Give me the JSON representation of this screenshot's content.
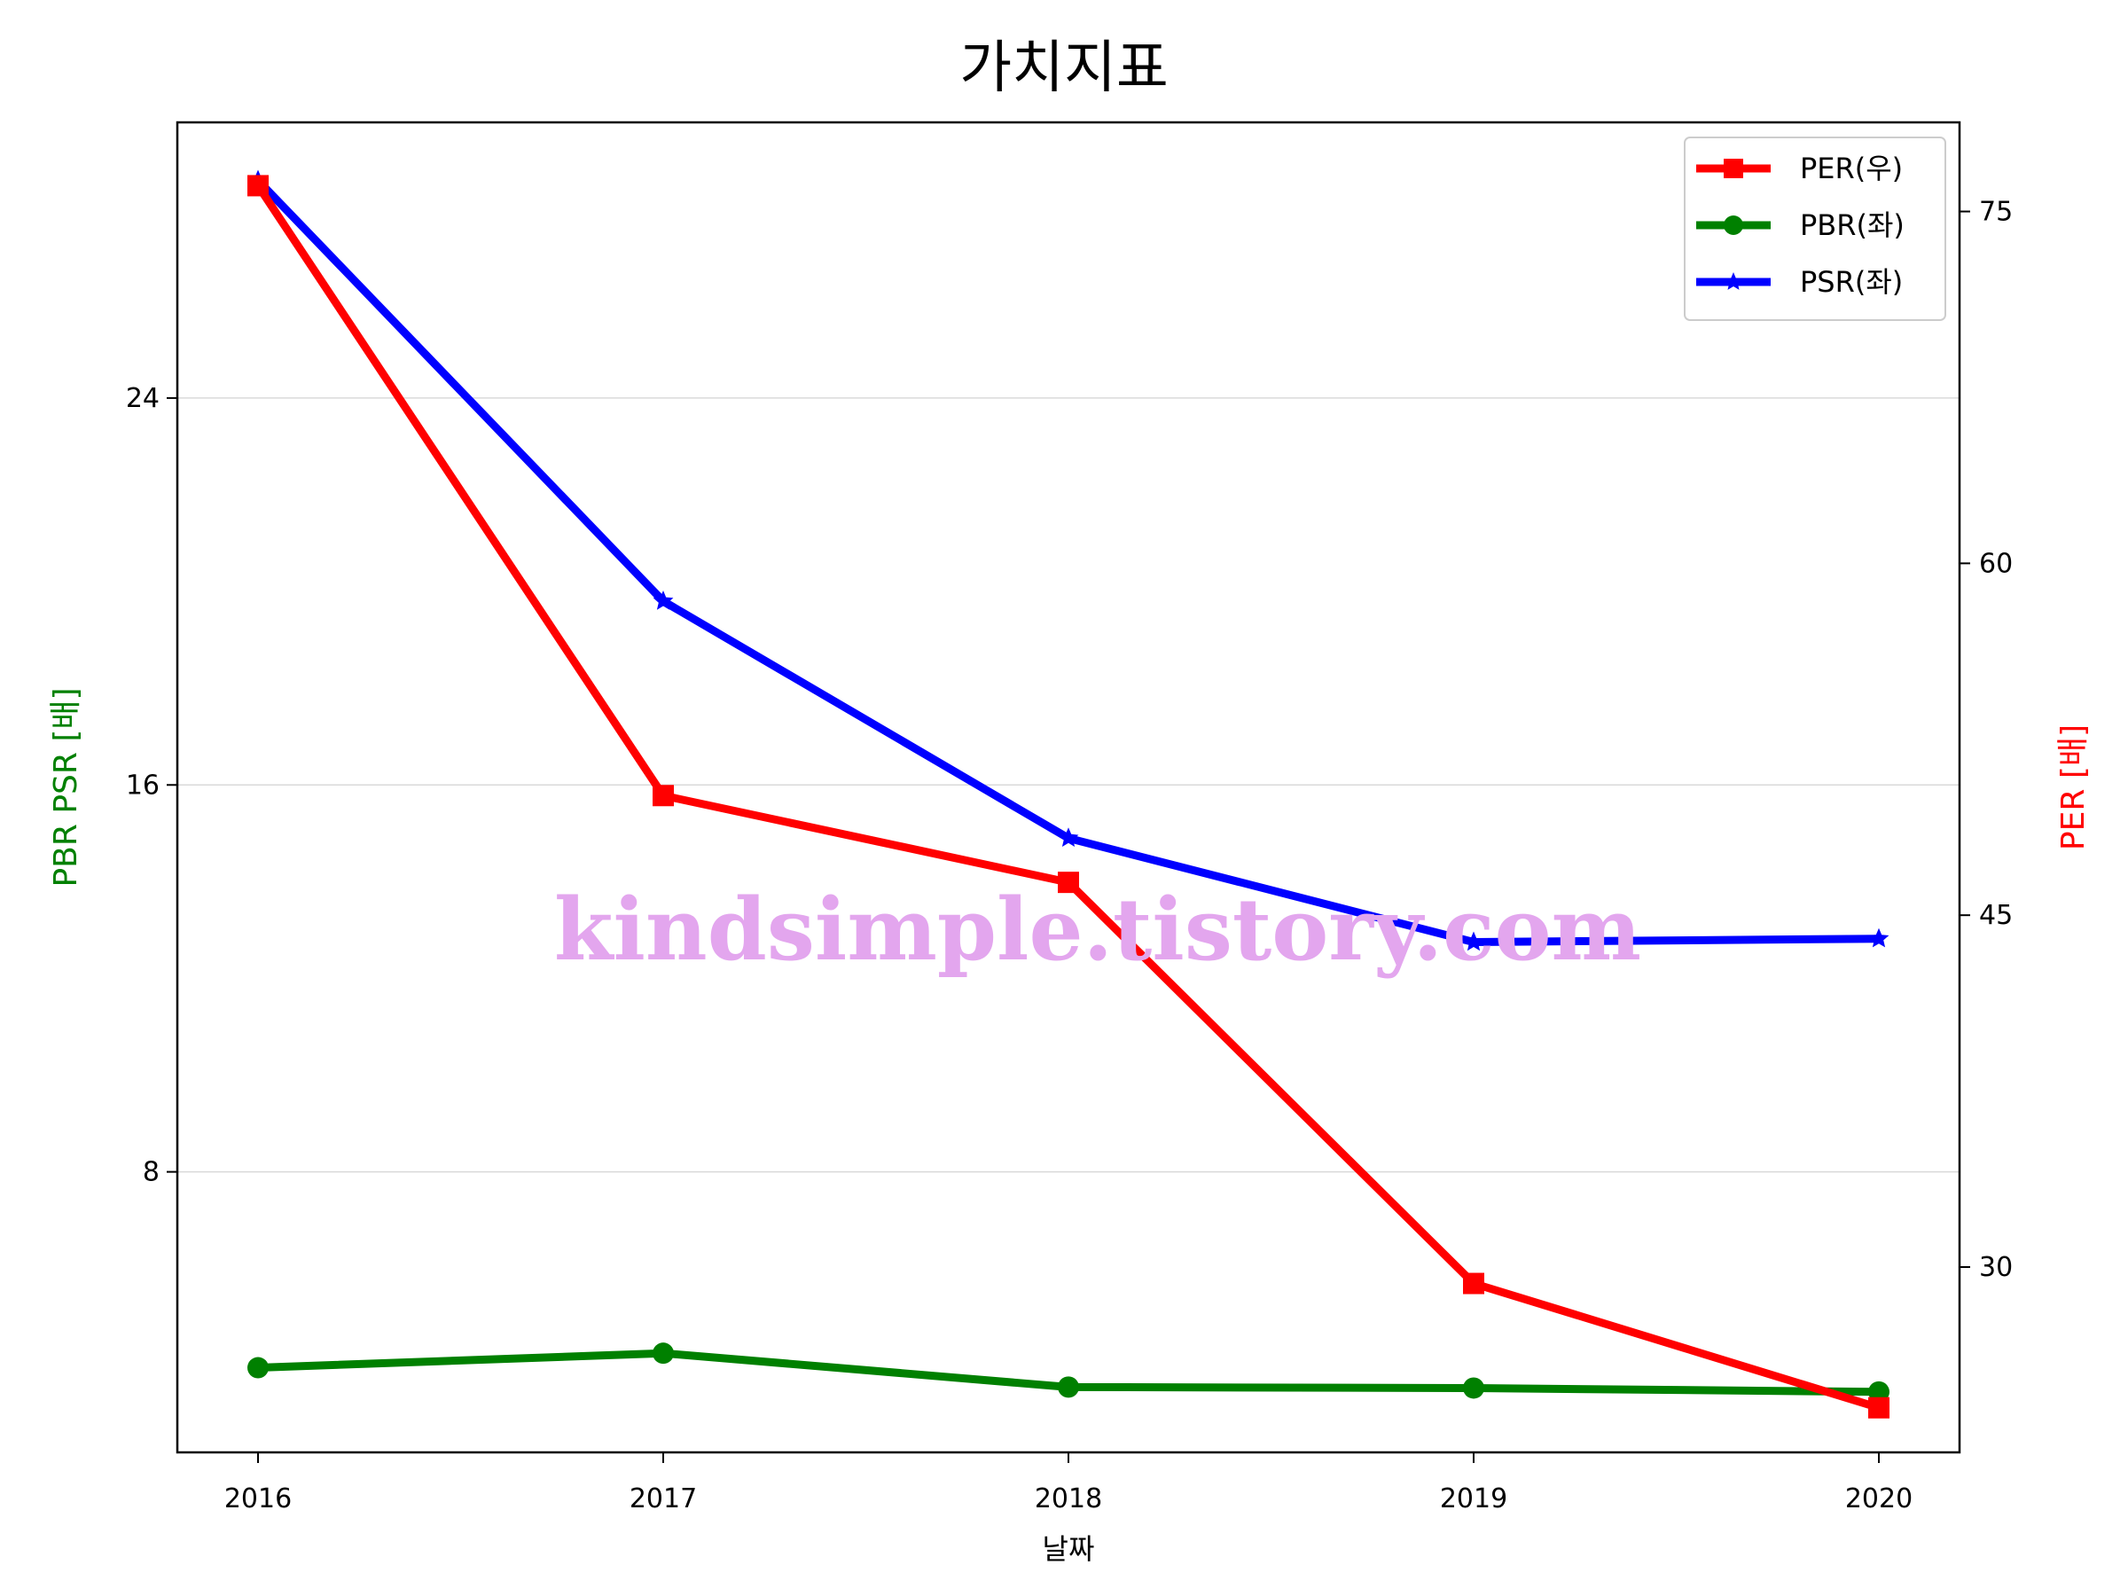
{
  "chart_data": {
    "type": "line",
    "title": "가치지표",
    "xlabel": "날짜",
    "ylabel_left": "PBR PSR [배]",
    "ylabel_right": "PER [배]",
    "categories": [
      "2016",
      "2017",
      "2018",
      "2019",
      "2020"
    ],
    "y_left": {
      "ticks": [
        8,
        16,
        24
      ],
      "range": [
        2.2,
        29.7
      ],
      "color": "#008000"
    },
    "y_right": {
      "ticks": [
        30,
        45,
        60,
        75
      ],
      "range": [
        22.1,
        78.8
      ],
      "color": "#ff0000"
    },
    "grid": "horizontal",
    "legend_position": "top-right",
    "series": [
      {
        "name": "PER(우)",
        "axis": "right",
        "color": "#ff0000",
        "marker": "square",
        "values": [
          76.1,
          50.1,
          46.4,
          29.3,
          24.0
        ]
      },
      {
        "name": "PBR(좌)",
        "axis": "left",
        "color": "#008000",
        "marker": "circle",
        "values": [
          3.95,
          4.25,
          3.55,
          3.53,
          3.45
        ]
      },
      {
        "name": "PSR(좌)",
        "axis": "left",
        "color": "#0000ff",
        "marker": "star",
        "values": [
          28.5,
          19.8,
          14.9,
          12.75,
          12.82
        ]
      }
    ],
    "watermark": "kindsimple.tistory.com"
  }
}
